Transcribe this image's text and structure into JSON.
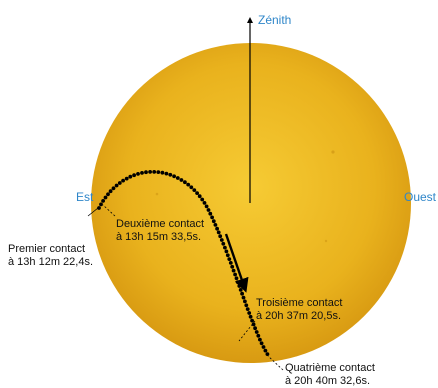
{
  "colors": {
    "sun_light": "#f6cb34",
    "sun_mid": "#e9b21d",
    "sun_dark": "#d89a12",
    "direction_label": "#2f86c9",
    "path": "#000000"
  },
  "directions": {
    "zenith": "Zénith",
    "east": "Est",
    "west": "Ouest"
  },
  "contacts": [
    {
      "line1": "Premier contact",
      "line2": "à 13h 12m 22,4s."
    },
    {
      "line1": "Deuxième contact",
      "line2": "à 13h 15m 33,5s."
    },
    {
      "line1": "Troisième contact",
      "line2": "à 20h 37m 20,5s."
    },
    {
      "line1": "Quatrième contact",
      "line2": "à 20h 40m 32,6s."
    }
  ]
}
